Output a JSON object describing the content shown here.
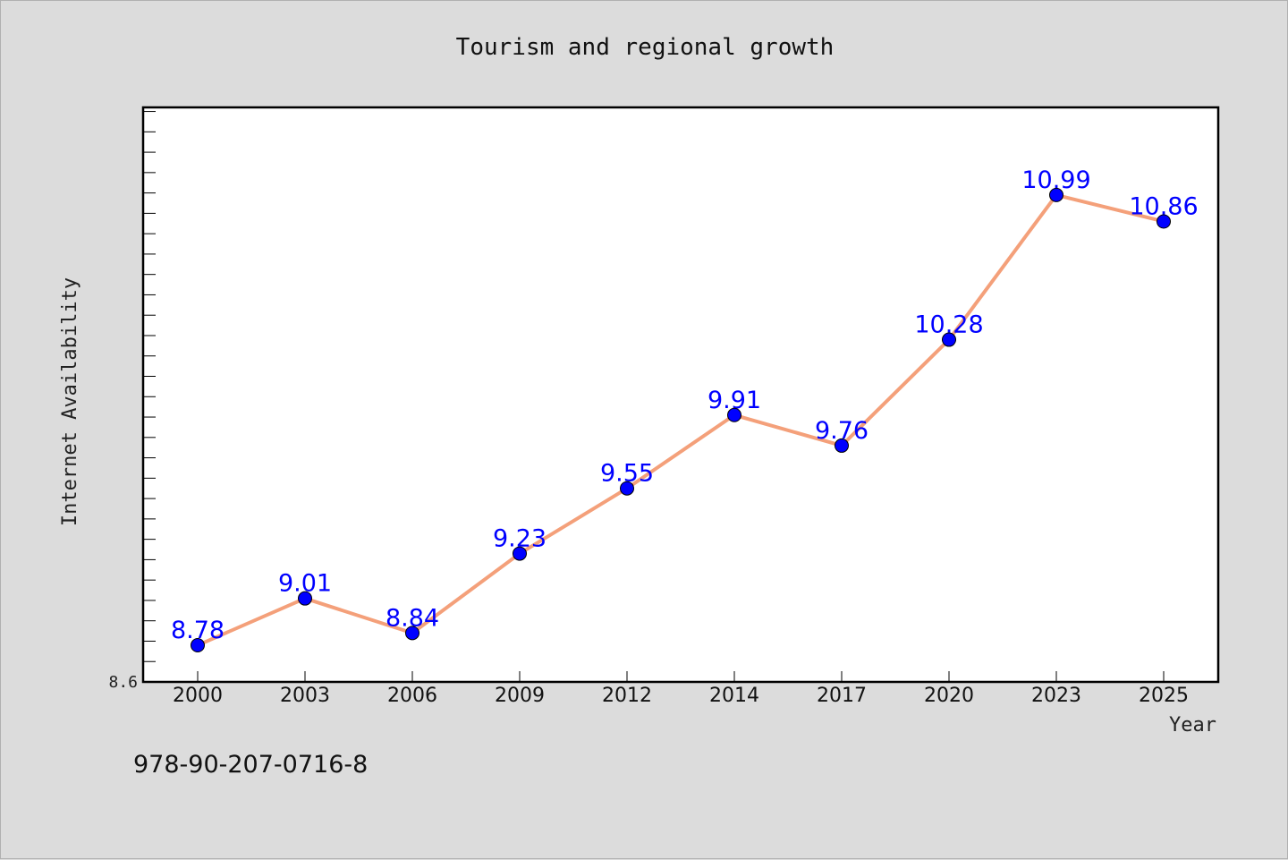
{
  "chart_data": {
    "type": "line",
    "title": "Tourism and regional growth",
    "xlabel": "Year",
    "ylabel": "Internet Availability",
    "categories": [
      "2000",
      "2003",
      "2006",
      "2009",
      "2012",
      "2014",
      "2017",
      "2020",
      "2023",
      "2025"
    ],
    "series": [
      {
        "values": [
          8.78,
          9.01,
          8.84,
          9.23,
          9.55,
          9.91,
          9.76,
          10.28,
          10.99,
          10.86
        ],
        "labels": [
          "8.78",
          "9.01",
          "8.84",
          "9.23",
          "9.55",
          "9.91",
          "9.76",
          "10.28",
          "10.99",
          "10.86"
        ],
        "line_color": "#f4a07a",
        "marker_color": "#0000ff"
      }
    ],
    "ylim": [
      8.6,
      11.42
    ],
    "ytick_labels": [
      {
        "value": 8.6,
        "text": "8.6"
      }
    ],
    "grid": false,
    "legend": "none"
  },
  "footer_text": "978-90-207-0716-8"
}
